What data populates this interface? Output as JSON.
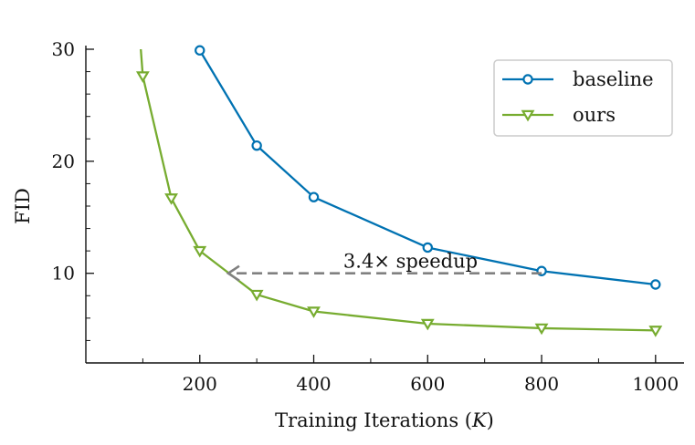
{
  "chart_data": {
    "type": "line",
    "xlabel": "Training Iterations (K)",
    "ylabel": "FID",
    "xlim": [
      0,
      1050
    ],
    "ylim": [
      2,
      30
    ],
    "xticks": [
      200,
      400,
      600,
      800,
      1000
    ],
    "xticks_labels": [
      "200",
      "400",
      "600",
      "800",
      "1000"
    ],
    "yticks": [
      10,
      20,
      30
    ],
    "yticks_labels": [
      "10",
      "20",
      "30"
    ],
    "grid": false,
    "legend_position": "top-right",
    "series": [
      {
        "name": "baseline",
        "color": "#0072B2",
        "marker": "circle",
        "x": [
          200,
          300,
          400,
          600,
          800,
          1000
        ],
        "y": [
          29.9,
          21.4,
          16.8,
          12.3,
          10.2,
          9.0
        ]
      },
      {
        "name": "ours",
        "color": "#77AC30",
        "marker": "triangle-down",
        "x": [
          100,
          150,
          200,
          300,
          400,
          600,
          800,
          1000
        ],
        "y": [
          27.6,
          16.7,
          12.0,
          8.1,
          6.6,
          5.5,
          5.1,
          4.9
        ],
        "extends_above_top": true,
        "line_start": [
          95,
          31
        ]
      }
    ],
    "annotations": [
      {
        "text": "3.4× speedup",
        "arrow_from": [
          800,
          10
        ],
        "arrow_to": [
          250,
          10
        ],
        "color": "#808080",
        "style": "dashed"
      }
    ]
  }
}
